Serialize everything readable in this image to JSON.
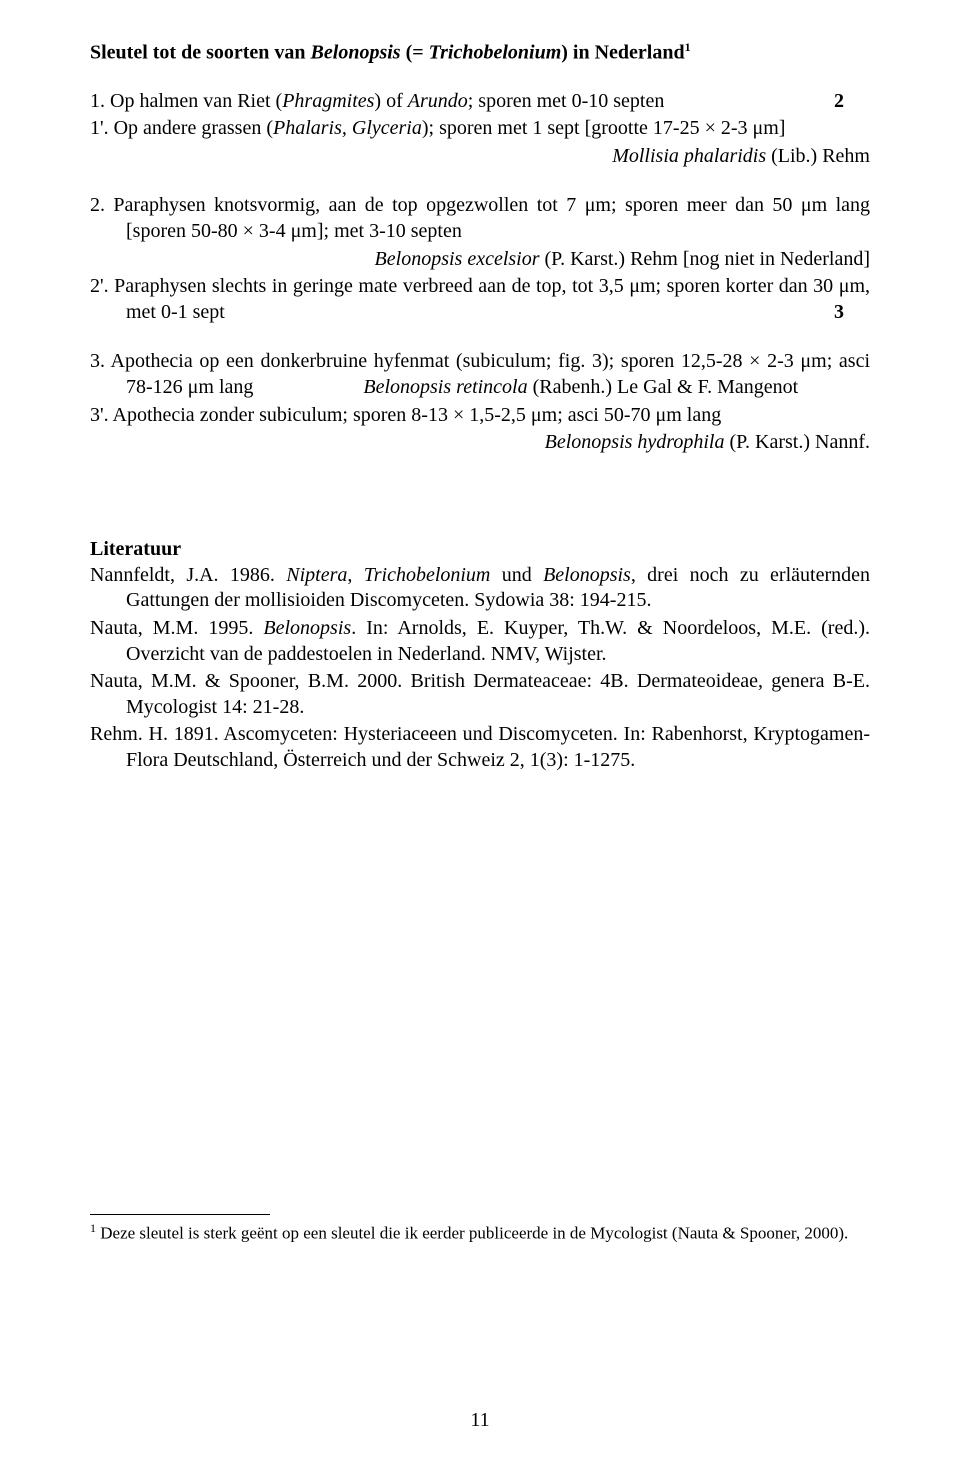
{
  "title_prefix": "Sleutel tot de soorten van ",
  "title_genus": "Belonopsis",
  "title_syn_open": " (= ",
  "title_syn": "Trichobelonium",
  "title_syn_close": ") in Nederland",
  "title_sup": "1",
  "k1_a_lead": "1.  Op halmen van Riet (",
  "k1_a_host1": "Phragmites",
  "k1_a_mid": ") of ",
  "k1_a_host2": "Arundo",
  "k1_a_tail": "; sporen met 0-10 septen",
  "k1_a_num": "2",
  "k1_b_lead": "1'. Op andere grassen (",
  "k1_b_hosts": "Phalaris, Glyceria",
  "k1_b_tail": "); sporen met 1 sept [grootte 17-25 × 2-3 μm]",
  "k1_b_species": "Mollisia phalaridis",
  "k1_b_auth": " (Lib.) Rehm",
  "k2_a_txt": "2.  Paraphysen knotsvormig, aan de top opgezwollen tot 7 μm; sporen meer dan 50 μm lang [sporen 50-80 × 3-4 μm]; met 3-10 septen",
  "k2_a_species": "Belonopsis excelsior",
  "k2_a_auth": " (P. Karst.) Rehm [nog niet in Nederland]",
  "k2_b_txt": "2'. Paraphysen slechts in geringe mate verbreed aan de top, tot 3,5 μm; sporen korter dan 30 μm, met 0-1 sept",
  "k2_b_num": "3",
  "k3_a_txt1": "3.  Apothecia op een donkerbruine hyfenmat (subiculum; fig. 3); sporen 12,5-28 × 2-3 μm; asci 78-126 μm lang",
  "k3_a_species": "Belonopsis retincola",
  "k3_a_auth": " (Rabenh.) Le Gal & F. Mangenot",
  "k3_b_txt": "3'. Apothecia zonder subiculum; sporen 8-13 × 1,5-2,5 μm; asci 50-70 μm lang",
  "k3_b_species": "Belonopsis hydrophila",
  "k3_b_auth": " (P. Karst.) Nannf.",
  "lit_heading": "Literatuur",
  "lit1_a": "Nannfeldt, J.A. 1986. ",
  "lit1_i1": "Niptera",
  "lit1_b": ", ",
  "lit1_i2": "Trichobelonium",
  "lit1_c": " und ",
  "lit1_i3": "Belonopsis",
  "lit1_d": ", drei noch zu erläuternden Gattungen der mollisioiden Discomyceten. Sydowia 38: 194-215.",
  "lit2_a": "Nauta, M.M. 1995. ",
  "lit2_i": "Belonopsis",
  "lit2_b": ". In: Arnolds, E. Kuyper, Th.W. & Noordeloos, M.E. (red.). Overzicht van de paddestoelen in Nederland. NMV, Wijster.",
  "lit3": "Nauta, M.M. & Spooner, B.M. 2000. British Dermateaceae: 4B. Dermateoideae, genera B-E. Mycologist 14: 21-28.",
  "lit4": "Rehm. H. 1891. Ascomyceten: Hysteriaceeen und Discomyceten. In: Rabenhorst, Kryptogamen-Flora Deutschland, Österreich und der Schweiz 2, 1(3): 1-1275.",
  "footnote_sup": "1",
  "footnote_txt": " Deze sleutel is sterk geënt op een sleutel die ik eerder publiceerde in de Mycologist (Nauta & Spooner, 2000).",
  "page_number": "11"
}
